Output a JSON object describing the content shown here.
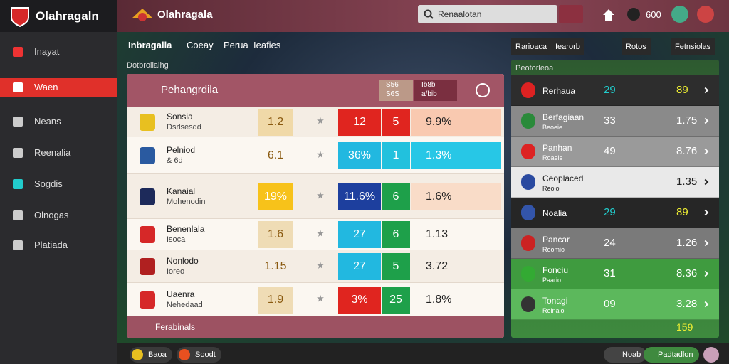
{
  "sidebar": {
    "brand": "Olahragaln",
    "menu": [
      "Inayat",
      "Waen",
      "Neans",
      "Reenalia",
      "Sogdis",
      "Olnogas",
      "Platiada"
    ]
  },
  "topbar": {
    "brand": "Olahragala",
    "search": "Renaalotan",
    "count": "600"
  },
  "tabs": [
    "Inbragalla",
    "Coeay",
    "Perua",
    "Ieafies"
  ],
  "right_tabs": [
    "Rarioaca",
    "Iearorb",
    "Rotos",
    "Fetnsiolas"
  ],
  "section_label": "Dotbroliaihg",
  "panel": {
    "title": "Pehangrdila",
    "head_a": [
      "S56",
      "S6S"
    ],
    "head_b": [
      "Ib8b",
      "a/bib"
    ],
    "rows": [
      {
        "name": "Sonsia",
        "sub": "Dsrlsesdd",
        "odds": "1.2",
        "a": "12",
        "b": "5",
        "pct": "9.9%"
      },
      {
        "name": "Pelniod",
        "sub": "& 6d",
        "odds": "6.1",
        "a": "36%",
        "b": "1",
        "pct": "1.3%"
      },
      {
        "name": "Kanaial",
        "sub": "Mohenodin",
        "odds": "19%",
        "a": "11.6%",
        "b": "6",
        "pct": "1.6%"
      },
      {
        "name": "Benenlala",
        "sub": "Isoca",
        "odds": "1.6",
        "a": "27",
        "b": "6",
        "pct": "1.13"
      },
      {
        "name": "Nonlodo",
        "sub": "Ioreo",
        "odds": "1.15",
        "a": "27",
        "b": "5",
        "pct": "3.72"
      },
      {
        "name": "Uaenra",
        "sub": "Nehedaad",
        "odds": "1.9",
        "a": "3%",
        "b": "25",
        "pct": "1.8%"
      }
    ],
    "footer": "Ferabinals"
  },
  "right_panel": {
    "title": "Peotorleoa",
    "rows": [
      {
        "name": "Rerhaua",
        "sub": "",
        "v1": "29",
        "v2": "89"
      },
      {
        "name": "Berfagiaan",
        "sub": "Beoeie",
        "v1": "33",
        "v2": "1.75"
      },
      {
        "name": "Panhan",
        "sub": "Roaeis",
        "v1": "49",
        "v2": "8.76"
      },
      {
        "name": "Ceoplaced",
        "sub": "Reoio",
        "v1": "",
        "v2": "1.35"
      },
      {
        "name": "Noalia",
        "sub": "",
        "v1": "29",
        "v2": "89"
      },
      {
        "name": "Pancar",
        "sub": "Roomio",
        "v1": "24",
        "v2": "1.26"
      },
      {
        "name": "Fonciu",
        "sub": "Paario",
        "v1": "31",
        "v2": "8.36"
      },
      {
        "name": "Tonagi",
        "sub": "Reinalo",
        "v1": "09",
        "v2": "3.28"
      }
    ],
    "total": "159"
  },
  "bottom": {
    "left": [
      "Baoa",
      "Soodt"
    ],
    "right": [
      "Noab",
      "Padtadlon"
    ]
  }
}
